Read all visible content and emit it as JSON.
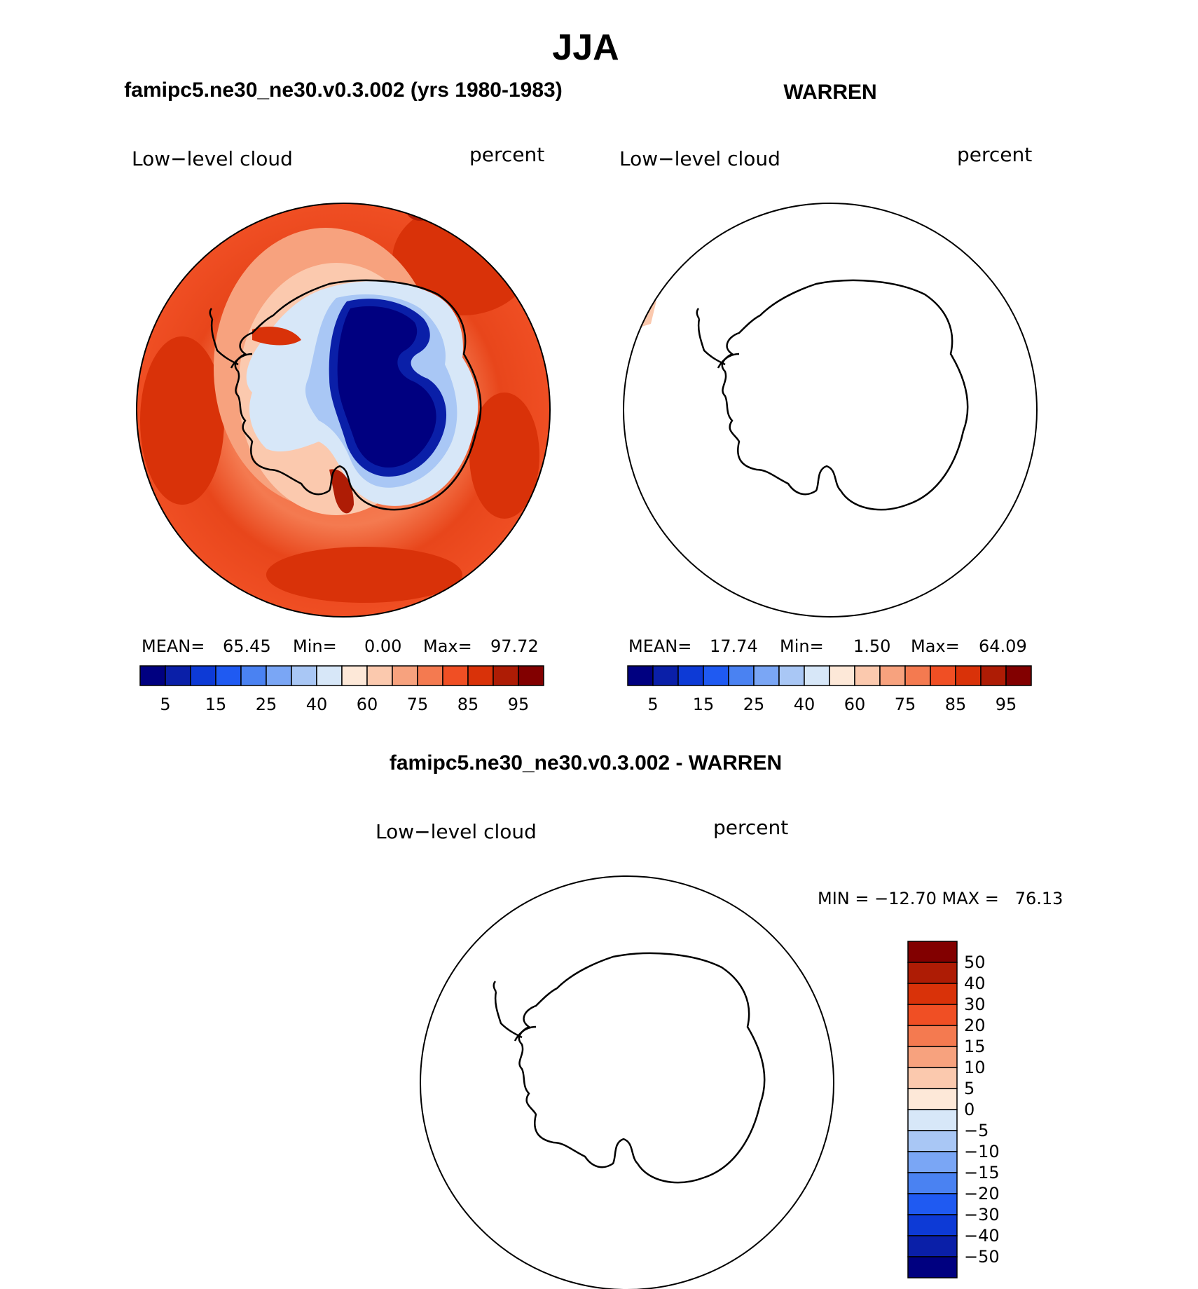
{
  "chart_data": {
    "type": "heatmap",
    "season": "JJA",
    "colorbar_palette": [
      "#000080",
      "#0a1fa8",
      "#0d3ad6",
      "#1f5af2",
      "#4a82f2",
      "#7aa6f5",
      "#a9c7f5",
      "#d7e7f8",
      "#fde8d8",
      "#fbc9ae",
      "#f7a27e",
      "#f47a50",
      "#f04f24",
      "#d93209",
      "#ae1c05",
      "#820000"
    ],
    "diff_palette": [
      "#000080",
      "#0a1fa8",
      "#0d3ad6",
      "#1f5af2",
      "#4a82f2",
      "#7aa6f5",
      "#a9c7f5",
      "#d7e7f8",
      "#fde8d8",
      "#fbc9ae",
      "#f7a27e",
      "#f47a50",
      "#f04f24",
      "#d93209",
      "#ae1c05",
      "#820000"
    ],
    "panels": [
      {
        "title": "famipc5.ne30_ne30.v0.3.002 (yrs 1980-1983)",
        "variable": "Low−level cloud",
        "units": "percent",
        "stats": {
          "mean_label": "MEAN=",
          "mean": "65.45",
          "min_label": "Min=",
          "min": "0.00",
          "max_label": "Max=",
          "max": "97.72"
        },
        "colorbar_labels": [
          "5",
          "15",
          "25",
          "40",
          "60",
          "75",
          "85",
          "95"
        ],
        "field": "filled"
      },
      {
        "title": "WARREN",
        "variable": "Low−level cloud",
        "units": "percent",
        "stats": {
          "mean_label": "MEAN=",
          "mean": "17.74",
          "min_label": "Min=",
          "min": "1.50",
          "max_label": "Max=",
          "max": "64.09"
        },
        "colorbar_labels": [
          "5",
          "15",
          "25",
          "40",
          "60",
          "75",
          "85",
          "95"
        ],
        "field": "sparse"
      },
      {
        "title": "famipc5.ne30_ne30.v0.3.002 - WARREN",
        "variable": "Low−level cloud",
        "units": "percent",
        "minmax_text": "MIN = −12.70 MAX =   76.13",
        "colorbar_labels": [
          "50",
          "40",
          "30",
          "20",
          "15",
          "10",
          "5",
          "0",
          "−5",
          "−10",
          "−15",
          "−20",
          "−30",
          "−40",
          "−50"
        ],
        "field": "sparse"
      }
    ]
  }
}
